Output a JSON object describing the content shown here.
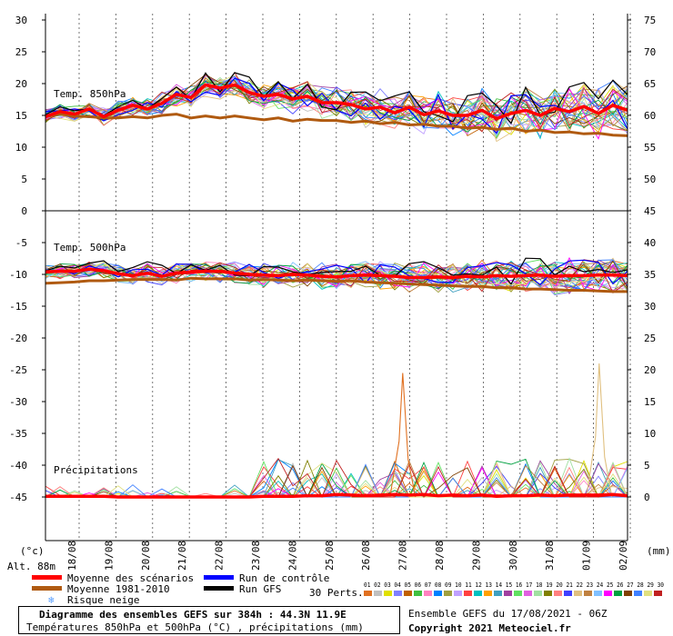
{
  "chart_data": {
    "type": "line",
    "x_tick_labels": [
      "18/08",
      "19/08",
      "20/08",
      "21/08",
      "22/08",
      "23/08",
      "24/08",
      "25/08",
      "26/08",
      "27/08",
      "28/08",
      "29/08",
      "30/08",
      "31/08",
      "01/09",
      "02/09"
    ],
    "panels": [
      {
        "name": "Temp. 850hPa",
        "left_ticks": [
          "30",
          "25",
          "20",
          "15",
          "10",
          "5",
          "0"
        ],
        "right_ticks": [
          "75",
          "70",
          "65",
          "60",
          "55",
          "50",
          "45"
        ],
        "left_range": [
          0,
          30
        ],
        "mean": [
          14.8,
          15.6,
          15.2,
          16.0,
          14.8,
          15.8,
          16.6,
          16.0,
          16.9,
          18.3,
          17.8,
          19.8,
          19.3,
          19.8,
          18.6,
          18.0,
          18.3,
          17.6,
          18.0,
          17.0,
          17.0,
          16.7,
          16.0,
          16.3,
          15.4,
          16.3,
          15.1,
          15.7,
          15.0,
          15.0,
          15.8,
          14.5,
          15.3,
          15.8,
          15.0,
          16.1,
          15.6,
          16.4,
          15.3,
          16.6,
          15.8
        ],
        "climatology": [
          14.8,
          15.2,
          14.9,
          14.8,
          14.6,
          14.6,
          14.8,
          14.6,
          15.0,
          15.2,
          14.6,
          14.9,
          14.6,
          14.9,
          14.6,
          14.3,
          14.6,
          14.1,
          14.4,
          14.2,
          14.2,
          13.9,
          14.1,
          13.7,
          13.9,
          13.5,
          13.6,
          13.3,
          13.3,
          13.0,
          13.1,
          12.8,
          13.0,
          12.5,
          12.7,
          12.3,
          12.4,
          12.1,
          12.2,
          11.9,
          11.8
        ]
      },
      {
        "name": "Temp. 500hPa",
        "left_ticks": [
          "-5",
          "-10",
          "-15",
          "-20"
        ],
        "right_ticks": [
          "40",
          "35",
          "30",
          "25"
        ],
        "left_range": [
          -20,
          -5
        ],
        "mean": [
          -9.6,
          -9.5,
          -9.5,
          -9.2,
          -9.4,
          -9.9,
          -10.2,
          -9.8,
          -10.3,
          -9.8,
          -9.6,
          -9.5,
          -9.5,
          -9.8,
          -10.0,
          -10.1,
          -10.2,
          -10.0,
          -10.1,
          -10.3,
          -10.4,
          -10.2,
          -10.1,
          -10.2,
          -10.3,
          -10.5,
          -10.5,
          -10.4,
          -10.5,
          -10.3,
          -10.4,
          -10.2,
          -10.3,
          -10.2,
          -10.1,
          -10.3,
          -10.2,
          -10.2,
          -10.1,
          -10.1,
          -10.2
        ],
        "climatology": [
          -11.4,
          -11.3,
          -11.2,
          -11.0,
          -11.0,
          -10.9,
          -10.8,
          -10.8,
          -10.8,
          -10.9,
          -10.6,
          -10.7,
          -10.7,
          -10.7,
          -10.9,
          -10.8,
          -10.9,
          -11.0,
          -10.9,
          -11.0,
          -11.1,
          -11.0,
          -11.2,
          -11.3,
          -11.4,
          -11.5,
          -11.6,
          -11.7,
          -11.8,
          -11.9,
          -11.9,
          -12.1,
          -12.1,
          -12.3,
          -12.3,
          -12.4,
          -12.5,
          -12.5,
          -12.6,
          -12.7,
          -12.7
        ]
      },
      {
        "name": "Précipitations",
        "left_ticks": [
          "-25",
          "-30",
          "-35",
          "-40",
          "-45"
        ],
        "right_ticks": [
          "20",
          "15",
          "10",
          "5",
          "0"
        ],
        "right_range": [
          0,
          20
        ],
        "mean": [
          0.1,
          0.1,
          0.1,
          0.1,
          0.1,
          0.0,
          0.0,
          0.0,
          0.0,
          0.0,
          0.0,
          0.0,
          0.0,
          0.0,
          0.0,
          0.1,
          0.1,
          0.1,
          0.2,
          0.2,
          0.4,
          0.3,
          0.2,
          0.3,
          0.4,
          0.3,
          0.4,
          0.2,
          0.3,
          0.2,
          0.3,
          0.1,
          0.2,
          0.2,
          0.3,
          0.2,
          0.3,
          0.3,
          0.3,
          0.4,
          0.2
        ],
        "peaks": [
          {
            "date_index": 9.1,
            "value": 19.5
          },
          {
            "date_index": 14.5,
            "value": 21.0
          }
        ]
      }
    ],
    "axis_units": {
      "left": "(°c)",
      "right": "(mm)"
    },
    "ensemble_members": 30,
    "colors": {
      "mean": "#ff0000",
      "climatology": "#b05a10",
      "control": "#0000ff",
      "gfs": "#000000"
    }
  },
  "altitude_label": "Alt. 88m",
  "legend": {
    "mean_label": "Moyenne des scénarios",
    "clim_label": "Moyenne 1981-2010",
    "snow_label": "Risque neige",
    "control_label": "Run de contrôle",
    "gfs_label": "Run GFS",
    "perts_label": "30 Perts.",
    "member_numbers": "01 02 03 04 05 06 07 08 09 10 11 12 13 14 15 16 17 18 19 20 21 22 23 24 25 26 27 28 29 30",
    "member_colors": [
      "#e07020",
      "#c0c0c0",
      "#e0e000",
      "#8080ff",
      "#c06000",
      "#40c040",
      "#ff80c0",
      "#0080ff",
      "#a0a040",
      "#c0a0ff",
      "#ff4040",
      "#00c0c0",
      "#ffa000",
      "#40a0c0",
      "#a040a0",
      "#60e060",
      "#e060e0",
      "#a0e0a0",
      "#808000",
      "#ff8080",
      "#4040ff",
      "#e0c080",
      "#c08040",
      "#80c0ff",
      "#ff00ff",
      "#00a040",
      "#804000",
      "#4080ff",
      "#e0e080",
      "#c02020"
    ]
  },
  "footer": {
    "line1": "Diagramme des ensembles GEFS sur 384h : 44.3N 11.9E",
    "line2": "Températures 850hPa et 500hPa (°C) , précipitations (mm)",
    "run": "Ensemble GEFS du 17/08/2021 - 06Z",
    "copyright": "Copyright 2021 Meteociel.fr"
  }
}
